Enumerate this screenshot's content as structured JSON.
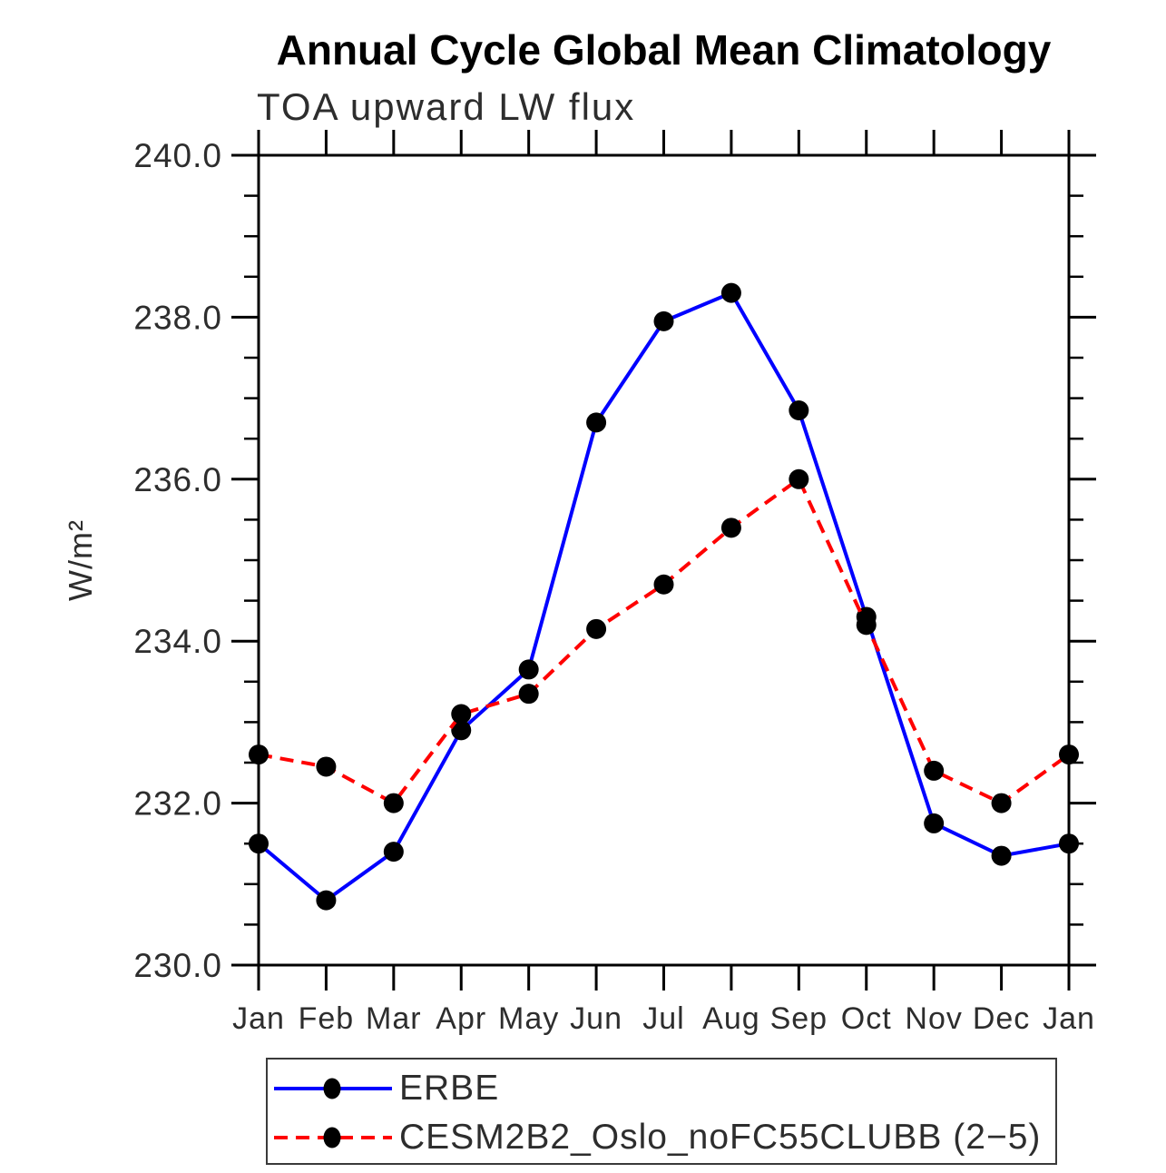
{
  "title": "Annual Cycle Global Mean Climatology",
  "subtitle": "TOA upward LW flux",
  "chart_data": {
    "type": "line",
    "title": "Annual Cycle Global Mean Climatology",
    "subtitle": "TOA upward LW flux",
    "xlabel": "",
    "ylabel": "W/m²",
    "x_categories": [
      "Jan",
      "Feb",
      "Mar",
      "Apr",
      "May",
      "Jun",
      "Jul",
      "Aug",
      "Sep",
      "Oct",
      "Nov",
      "Dec",
      "Jan"
    ],
    "ylim": [
      230.0,
      240.0
    ],
    "y_major_ticks": [
      230.0,
      232.0,
      234.0,
      236.0,
      238.0,
      240.0
    ],
    "y_major_tick_labels": [
      "230.0",
      "232.0",
      "234.0",
      "236.0",
      "238.0",
      "240.0"
    ],
    "y_minor_step": 0.5,
    "grid": false,
    "legend_position": "bottom",
    "frame_color": "#000000",
    "tick_label_color": "#2d2d2d",
    "marker_color": "#000000",
    "series": [
      {
        "name": "ERBE",
        "color": "#0000ff",
        "style": "solid",
        "marker": "circle",
        "values": [
          231.5,
          230.8,
          231.4,
          232.9,
          233.65,
          236.7,
          237.95,
          238.3,
          236.85,
          234.3,
          231.75,
          231.35,
          231.5
        ]
      },
      {
        "name": "CESM2B2_Oslo_noFC55CLUBB (2−5)",
        "color": "#ff0000",
        "style": "dashed",
        "marker": "circle",
        "values": [
          232.6,
          232.45,
          232.0,
          233.1,
          233.35,
          234.15,
          234.7,
          235.4,
          236.0,
          234.2,
          232.4,
          232.0,
          232.6
        ]
      }
    ]
  }
}
